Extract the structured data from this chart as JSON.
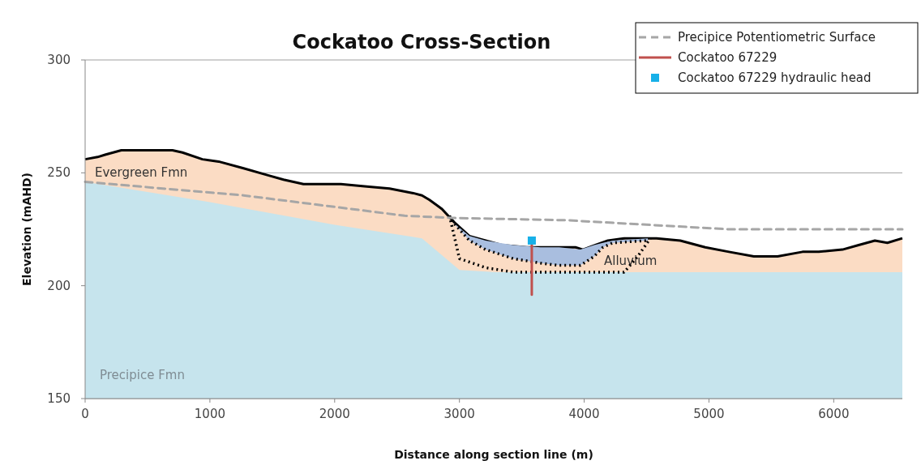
{
  "chart_data": {
    "type": "area",
    "title": "Cockatoo Cross-Section",
    "xlabel": "Distance along section line (m)",
    "ylabel": "Elevation (mAHD)",
    "xlim": [
      0,
      6550
    ],
    "xticks": [
      0,
      1000,
      2000,
      3000,
      4000,
      5000,
      6000
    ],
    "ylim": [
      150,
      300
    ],
    "yticks": [
      150,
      200,
      250,
      300
    ],
    "grid": "y",
    "legend": "top right",
    "series": [
      {
        "name": "Evergreen Fmn",
        "color": "#fbdcc4",
        "line_style": "solid",
        "x": [
          0,
          100,
          160,
          290,
          420,
          700,
          780,
          940,
          1070,
          1270,
          1460,
          1590,
          1750,
          1920,
          2050,
          2240,
          2440,
          2630,
          2700,
          2760,
          2860,
          2960,
          3080,
          3210,
          3340,
          3540,
          3670,
          3800,
          3930,
          3990,
          4090,
          4190,
          4320,
          4450,
          4580,
          4770,
          4970,
          5160,
          5360,
          5550,
          5750,
          5880,
          6070,
          6200,
          6330,
          6430,
          6550
        ],
        "values": [
          256,
          257,
          258,
          260,
          260,
          260,
          259,
          256,
          255,
          252,
          249,
          247,
          245,
          245,
          245,
          244,
          243,
          241,
          240,
          238,
          234,
          228,
          222,
          220,
          218,
          217,
          217,
          217,
          217,
          216,
          218,
          220,
          221,
          221,
          221,
          220,
          217,
          215,
          213,
          213,
          215,
          215,
          216,
          218,
          220,
          219,
          221
        ]
      },
      {
        "name": "Precipice Fmn",
        "color": "#c6e4ed",
        "x": [
          0,
          1000,
          2000,
          2700,
          2850,
          3000,
          3300,
          4500,
          6550
        ],
        "values": [
          246,
          237,
          227,
          221,
          214,
          207,
          206,
          206,
          206
        ]
      },
      {
        "name": "Alluvium",
        "type": "line",
        "color": "#000000",
        "line_style": "dotted",
        "x": [
          2920,
          2950,
          3080,
          3210,
          3430,
          3650,
          3800,
          3970,
          4080,
          4150,
          4230,
          4510
        ],
        "values": [
          231,
          228,
          220,
          216,
          212,
          210,
          209,
          209,
          213,
          217,
          219,
          220
        ],
        "lower": [
          231,
          228,
          220,
          216,
          212,
          210,
          209,
          209,
          213,
          217,
          219,
          220
        ],
        "upper": [
          231,
          228,
          222,
          220,
          218,
          217,
          217,
          216,
          218,
          219,
          220,
          221
        ]
      },
      {
        "type": "line",
        "color": "#000000",
        "line_style": "dotted",
        "x": [
          2920,
          3000,
          3210,
          3430,
          3860,
          4320,
          4430,
          4530
        ],
        "values": [
          231,
          212,
          208,
          206,
          206,
          206,
          213,
          221
        ]
      },
      {
        "name": "Precipice Potentiometric Surface",
        "type": "line",
        "color": "#a6a6a6",
        "line_style": "dashed",
        "x": [
          0,
          1270,
          2560,
          2950,
          3860,
          5160,
          6550
        ],
        "values": [
          246,
          240,
          231,
          230,
          229,
          225,
          225
        ]
      },
      {
        "name": "Cockatoo 67229",
        "type": "line",
        "color": "#c0504d",
        "line_style": "solid",
        "x": [
          3580,
          3580
        ],
        "values": [
          219,
          196
        ]
      },
      {
        "name": "Cockatoo 67229 hydraulic head",
        "type": "scatter",
        "color": "#17b0e8",
        "marker": "square",
        "x": [
          3580
        ],
        "values": [
          220
        ]
      }
    ]
  }
}
